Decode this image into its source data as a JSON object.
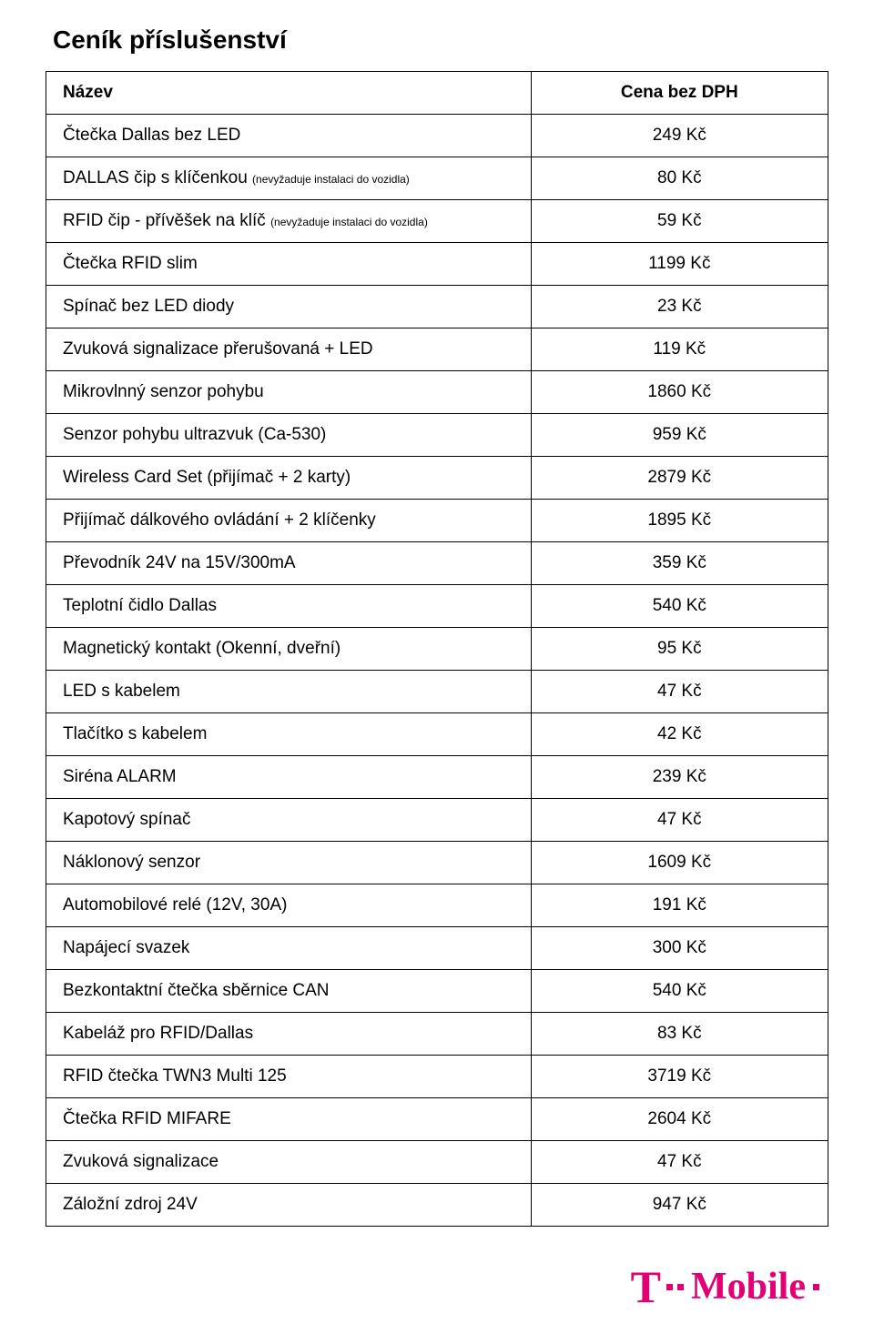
{
  "title": "Ceník příslušenství",
  "columns": [
    "Název",
    "Cena bez DPH"
  ],
  "rows": [
    {
      "name": "Čtečka Dallas bez LED",
      "note": "",
      "price": "249 Kč"
    },
    {
      "name": "DALLAS čip s klíčenkou ",
      "note": "(nevyžaduje instalaci do vozidla)",
      "price": "80 Kč"
    },
    {
      "name": "RFID čip - přívěšek na klíč ",
      "note": "(nevyžaduje instalaci do vozidla)",
      "price": "59 Kč"
    },
    {
      "name": "Čtečka RFID slim",
      "note": "",
      "price": "1199 Kč"
    },
    {
      "name": "Spínač bez LED diody",
      "note": "",
      "price": "23 Kč"
    },
    {
      "name": "Zvuková signalizace přerušovaná + LED",
      "note": "",
      "price": "119 Kč"
    },
    {
      "name": "Mikrovlnný senzor pohybu",
      "note": "",
      "price": "1860 Kč"
    },
    {
      "name": "Senzor pohybu ultrazvuk (Ca-530)",
      "note": "",
      "price": "959 Kč"
    },
    {
      "name": "Wireless Card Set (přijímač + 2 karty)",
      "note": "",
      "price": "2879 Kč"
    },
    {
      "name": "Přijímač dálkového ovládání + 2 klíčenky",
      "note": "",
      "price": "1895 Kč"
    },
    {
      "name": "Převodník 24V na 15V/300mA",
      "note": "",
      "price": "359 Kč"
    },
    {
      "name": "Teplotní čidlo Dallas",
      "note": "",
      "price": "540 Kč"
    },
    {
      "name": "Magnetický kontakt (Okenní, dveřní)",
      "note": "",
      "price": "95 Kč"
    },
    {
      "name": "LED s kabelem",
      "note": "",
      "price": "47 Kč"
    },
    {
      "name": "Tlačítko s kabelem",
      "note": "",
      "price": "42 Kč"
    },
    {
      "name": "Siréna ALARM",
      "note": "",
      "price": "239 Kč"
    },
    {
      "name": "Kapotový spínač",
      "note": "",
      "price": "47 Kč"
    },
    {
      "name": "Náklonový senzor",
      "note": "",
      "price": "1609 Kč"
    },
    {
      "name": "Automobilové relé (12V, 30A)",
      "note": "",
      "price": "191 Kč"
    },
    {
      "name": "Napájecí svazek",
      "note": "",
      "price": "300 Kč"
    },
    {
      "name": "Bezkontaktní čtečka sběrnice CAN",
      "note": "",
      "price": "540 Kč"
    },
    {
      "name": "Kabeláž pro RFID/Dallas",
      "note": "",
      "price": "83 Kč"
    },
    {
      "name": "RFID čtečka TWN3 Multi 125",
      "note": "",
      "price": "3719 Kč"
    },
    {
      "name": "Čtečka RFID MIFARE",
      "note": "",
      "price": "2604 Kč"
    },
    {
      "name": "Zvuková signalizace",
      "note": "",
      "price": "47 Kč"
    },
    {
      "name": "Záložní zdroj 24V",
      "note": "",
      "price": "947 Kč"
    }
  ],
  "logo": {
    "brand_color": "#e20074",
    "t_glyph": "T",
    "word": "Mobile",
    "dot_glyph": "■"
  }
}
